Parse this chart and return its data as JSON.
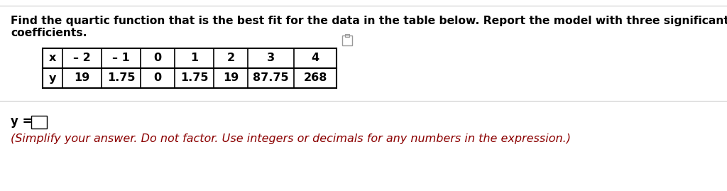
{
  "title_line1": "Find the quartic function that is the best fit for the data in the table below. Report the model with three significant digits in the",
  "title_line2": "coefficients.",
  "x_label": "x",
  "y_label": "y",
  "x_values": [
    "– 2",
    "– 1",
    "0",
    "1",
    "2",
    "3",
    "4"
  ],
  "y_values": [
    "19",
    "1.75",
    "0",
    "1.75",
    "19",
    "87.75",
    "268"
  ],
  "answer_label": "y =",
  "note_text": "(Simplify your answer. Do not factor. Use integers or decimals for any numbers in the expression.)",
  "bg_color": "#ffffff",
  "text_color": "#000000",
  "note_color": "#8b0000",
  "table_border_color": "#000000",
  "sep_line_color": "#cccccc",
  "title_fontsize": 11.2,
  "table_fontsize": 11.5,
  "answer_fontsize": 12.0,
  "note_fontsize": 11.5
}
